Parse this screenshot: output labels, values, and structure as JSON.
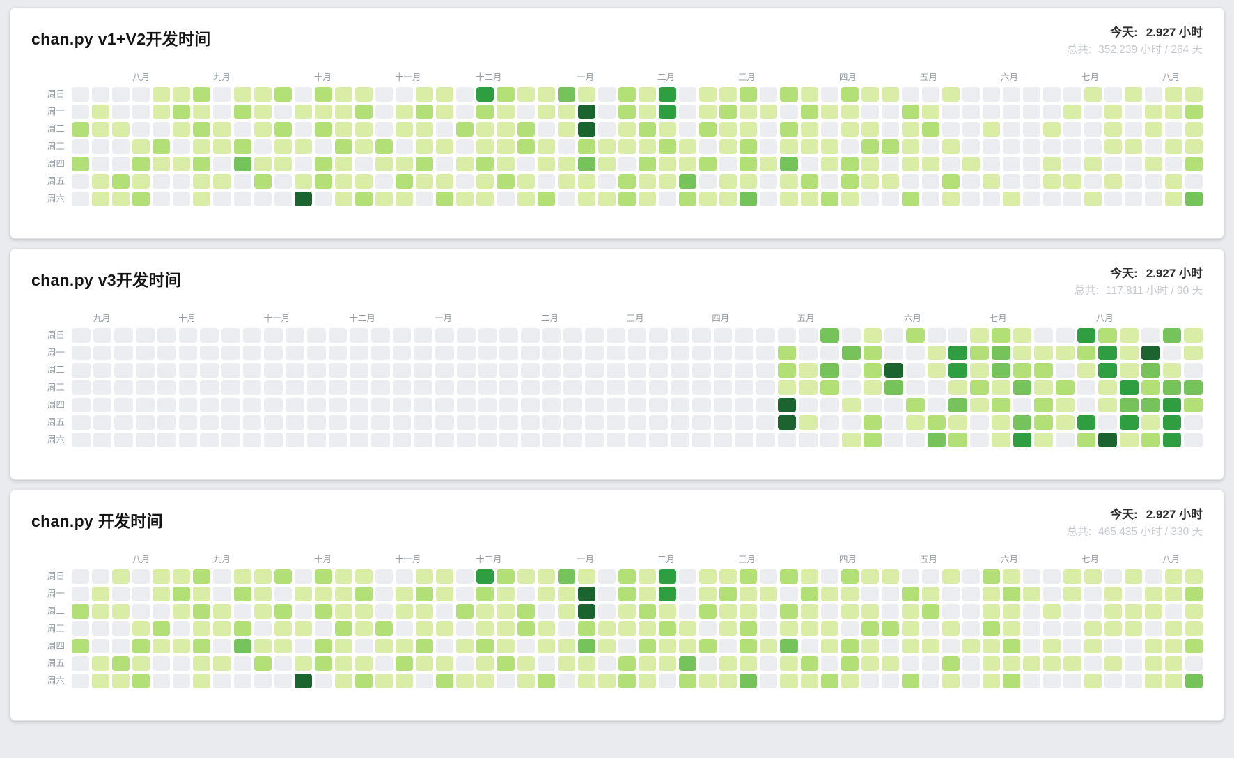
{
  "page": {
    "background": "#e9ebee",
    "card_background": "#ffffff"
  },
  "chart_data": [
    {
      "type": "heatmap",
      "title": "chan.py v1+V2开发时间",
      "today_label": "今天:",
      "today_value": "2.927 小时",
      "total_label": "总共:",
      "total_value": "352.239 小时 / 264 天",
      "day_labels": [
        "周日",
        "周一",
        "周二",
        "周三",
        "周四",
        "周五",
        "周六"
      ],
      "months": [
        {
          "label": "八月",
          "col": 3
        },
        {
          "label": "九月",
          "col": 7
        },
        {
          "label": "十月",
          "col": 12
        },
        {
          "label": "十一月",
          "col": 16
        },
        {
          "label": "十二月",
          "col": 20
        },
        {
          "label": "一月",
          "col": 25
        },
        {
          "label": "二月",
          "col": 29
        },
        {
          "label": "三月",
          "col": 33
        },
        {
          "label": "四月",
          "col": 38
        },
        {
          "label": "五月",
          "col": 42
        },
        {
          "label": "六月",
          "col": 46
        },
        {
          "label": "七月",
          "col": 50
        },
        {
          "label": "八月",
          "col": 54
        }
      ],
      "columns": 56,
      "value_scale": "levels 0-5 (0 = no dev time, 5 = most hours in a day)",
      "palette": [
        "#ebedf0",
        "#d9eda7",
        "#b2e077",
        "#76c35c",
        "#2f9e41",
        "#1b6430"
      ],
      "rows": [
        "00001120112021100110421131021401120210211001000000101011",
        "01001210210111201210210115021401211021100210000001010112",
        "21100121012021101102112015012102110210110120010010010101",
        "00012011201102120110112102111210120111022101000000011011",
        "20021120311021011201210113102112021301210110100010100102",
        "01210011020121102110121011021130110120211002010011010010",
        "01120010000501211021101201121021130112100201001000100013"
      ]
    },
    {
      "type": "heatmap",
      "title": "chan.py v3开发时间",
      "today_label": "今天:",
      "today_value": "2.927 小时",
      "total_label": "总共:",
      "total_value": "117.811 小时 / 90 天",
      "day_labels": [
        "周日",
        "周一",
        "周二",
        "周三",
        "周四",
        "周五",
        "周六"
      ],
      "months": [
        {
          "label": "九月",
          "col": 1
        },
        {
          "label": "十月",
          "col": 5
        },
        {
          "label": "十一月",
          "col": 9
        },
        {
          "label": "十二月",
          "col": 13
        },
        {
          "label": "一月",
          "col": 17
        },
        {
          "label": "二月",
          "col": 22
        },
        {
          "label": "三月",
          "col": 26
        },
        {
          "label": "四月",
          "col": 30
        },
        {
          "label": "五月",
          "col": 34
        },
        {
          "label": "六月",
          "col": 39
        },
        {
          "label": "七月",
          "col": 43
        },
        {
          "label": "八月",
          "col": 48
        }
      ],
      "columns": 53,
      "value_scale": "levels 0-5 (0 = no dev time, 5 = most hours in a day)",
      "palette": [
        "#ebedf0",
        "#d9eda7",
        "#b2e077",
        "#76c35c",
        "#2f9e41",
        "#1b6430"
      ],
      "rows": [
        "00000000000000000000000000000000000301020012100421031",
        "00000000000000000000000000000000020032001423111241501",
        "00000000000000000000000000000000021302501413220141310",
        "00000000000000000000000000000000011201300121312014233",
        "00000000000000000000000000000000050010020312021013342",
        "00000000000000000000000000000000051002012101321404140",
        "00000000000000000000000000000000000012003201410251240"
      ]
    },
    {
      "type": "heatmap",
      "title": "chan.py 开发时间",
      "today_label": "今天:",
      "today_value": "2.927 小时",
      "total_label": "总共:",
      "total_value": "465.435 小时 / 330 天",
      "day_labels": [
        "周日",
        "周一",
        "周二",
        "周三",
        "周四",
        "周五",
        "周六"
      ],
      "months": [
        {
          "label": "八月",
          "col": 3
        },
        {
          "label": "九月",
          "col": 7
        },
        {
          "label": "十月",
          "col": 12
        },
        {
          "label": "十一月",
          "col": 16
        },
        {
          "label": "十二月",
          "col": 20
        },
        {
          "label": "一月",
          "col": 25
        },
        {
          "label": "二月",
          "col": 29
        },
        {
          "label": "三月",
          "col": 33
        },
        {
          "label": "四月",
          "col": 38
        },
        {
          "label": "五月",
          "col": 42
        },
        {
          "label": "六月",
          "col": 46
        },
        {
          "label": "七月",
          "col": 50
        },
        {
          "label": "八月",
          "col": 54
        }
      ],
      "columns": 56,
      "value_scale": "levels 0-5 (0 = no dev time, 5 = most hours in a day)",
      "palette": [
        "#ebedf0",
        "#d9eda7",
        "#b2e077",
        "#76c35c",
        "#2f9e41",
        "#1b6430"
      ],
      "rows": [
        "00101120112021100110421131021401120210211001021001101011",
        "01001210210111201210210115021401211021100210012101010112",
        "21100121012021101102112015012102110210110120011010011101",
        "00012011201102120110112102111210120111022101021000111011",
        "20021120311021011201210113102112021301210110112010100112",
        "01210011020121102110121011021130110120211002011111010110",
        "01120010000501211021101201121021130112100201012000100113"
      ]
    }
  ]
}
